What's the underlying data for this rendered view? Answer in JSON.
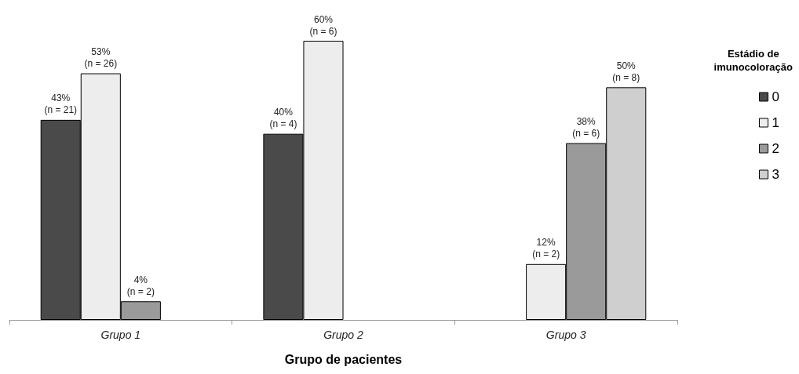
{
  "chart_data": {
    "type": "bar",
    "xlabel": "Grupo de pacientes",
    "legend_title": "Estádio de imunocoloração",
    "categories": [
      "Grupo 1",
      "Grupo 2",
      "Grupo 3"
    ],
    "legend": "right",
    "series": [
      {
        "name": "0",
        "color": "#4a4a4a",
        "values": [
          43,
          40,
          null
        ],
        "value_labels": [
          "43%\n(n = 21)",
          "40%\n(n = 4)",
          null
        ]
      },
      {
        "name": "1",
        "color": "#ededed",
        "values": [
          53,
          60,
          12
        ],
        "value_labels": [
          "53%\n(n = 26)",
          "60%\n(n = 6)",
          "12%\n(n = 2)"
        ]
      },
      {
        "name": "2",
        "color": "#9a9a9a",
        "values": [
          4,
          null,
          38
        ],
        "value_labels": [
          "4%\n(n = 2)",
          null,
          "38%\n(n = 6)"
        ]
      },
      {
        "name": "3",
        "color": "#cfcfcf",
        "values": [
          null,
          null,
          50
        ],
        "value_labels": [
          null,
          null,
          "50%\n(n = 8)"
        ]
      }
    ]
  }
}
